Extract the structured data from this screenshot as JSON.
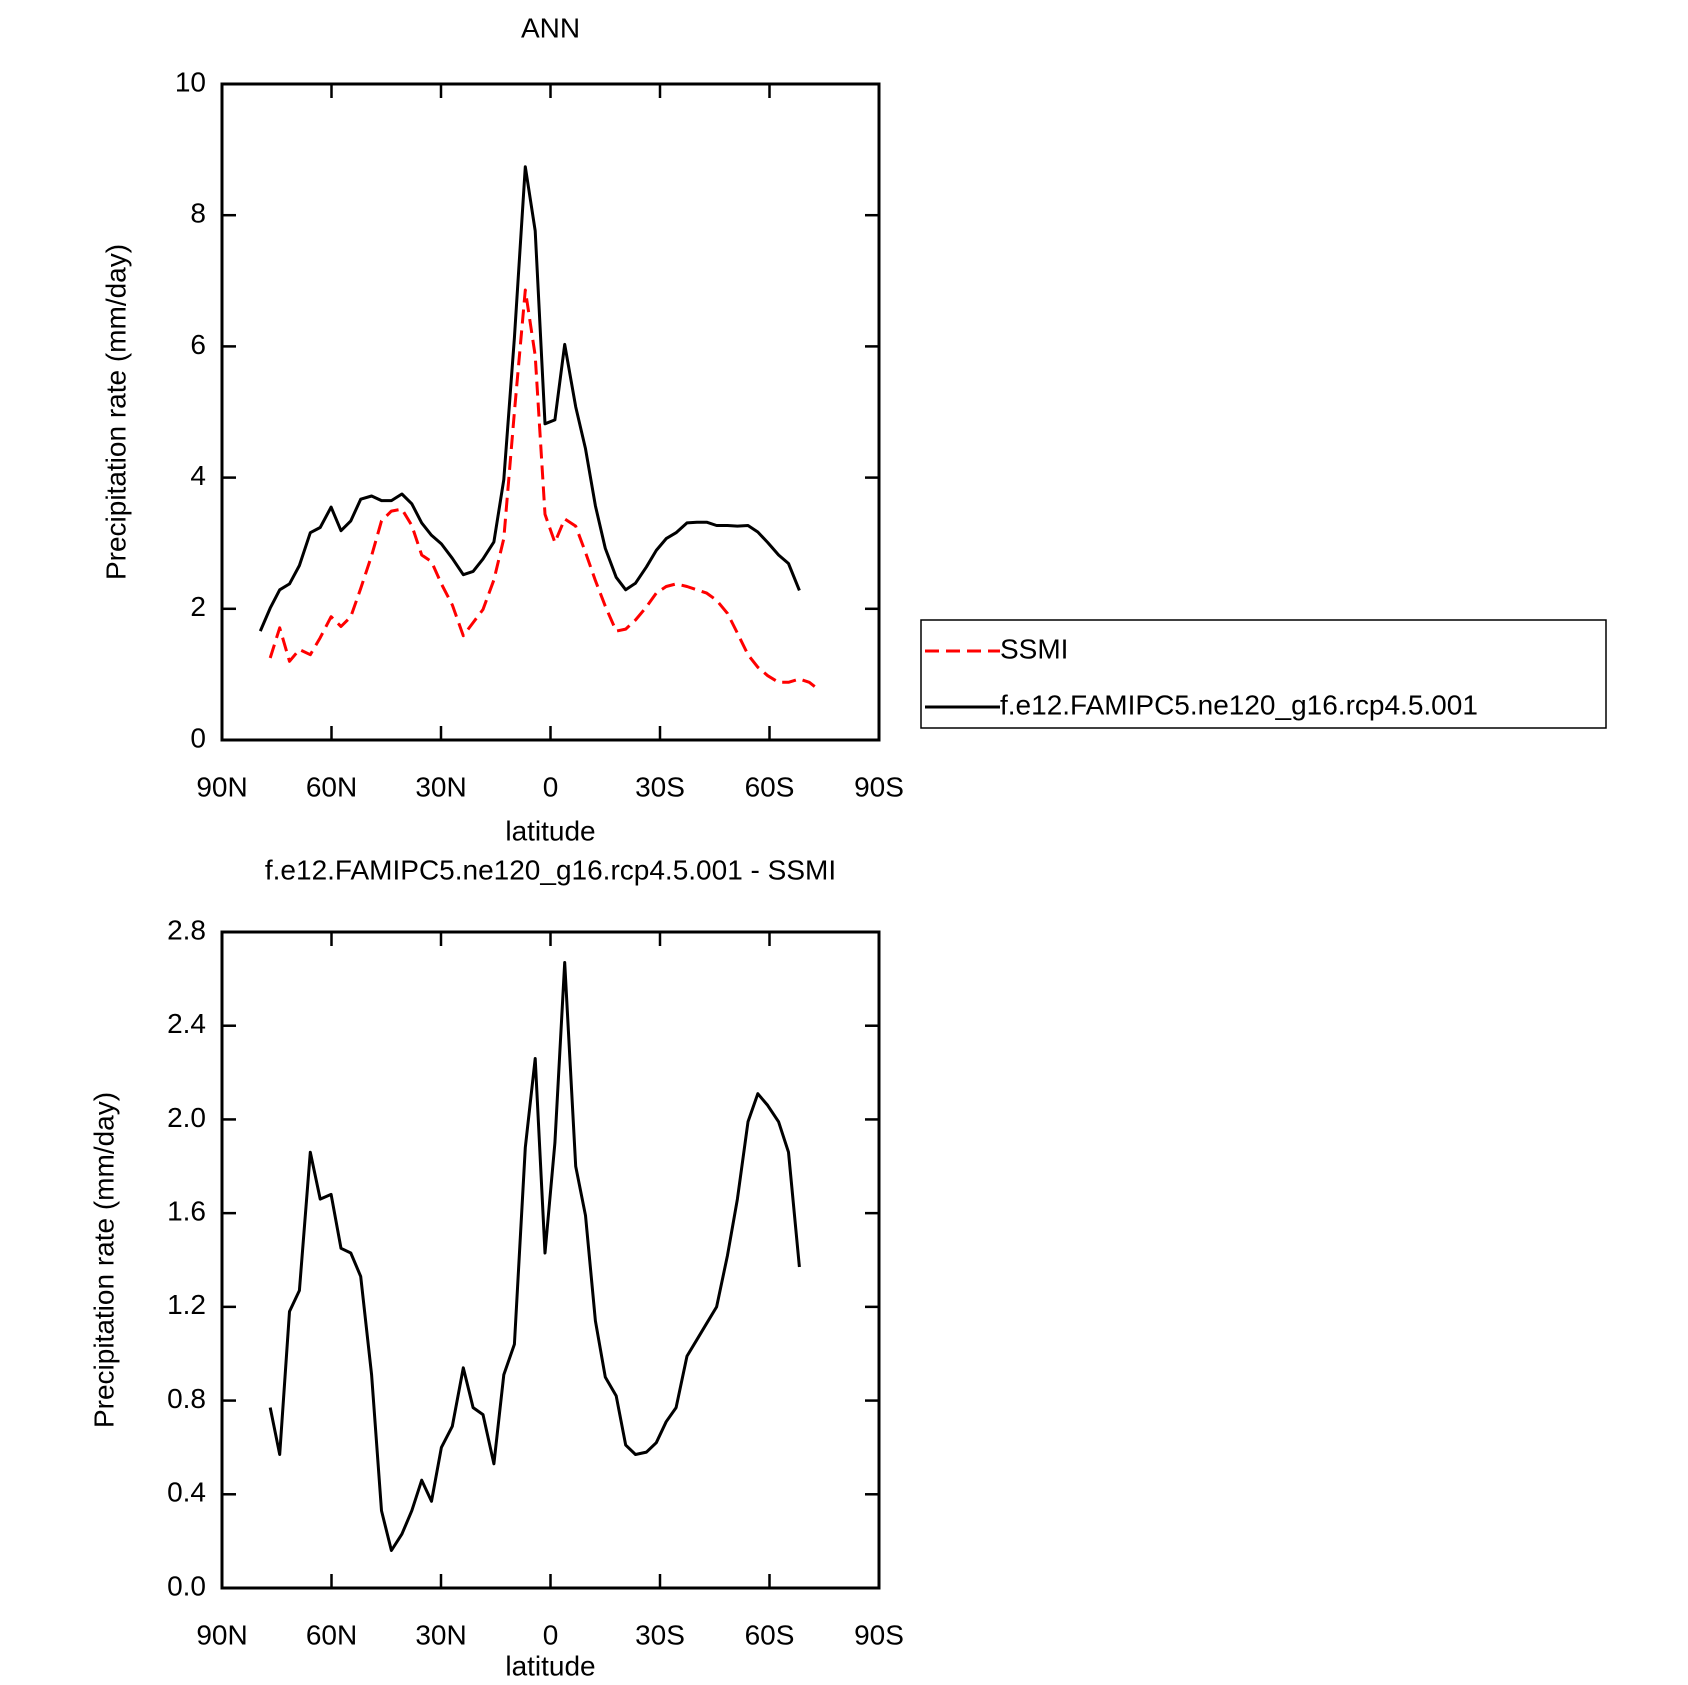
{
  "chart_data": [
    {
      "type": "line",
      "title": "ANN",
      "xlabel": "latitude",
      "ylabel": "Precipitation rate (mm/day)",
      "xlim": [
        90,
        -90
      ],
      "xticks": [
        {
          "value": 90,
          "label": "90N"
        },
        {
          "value": 60,
          "label": "60N"
        },
        {
          "value": 30,
          "label": "30N"
        },
        0,
        {
          "value": -30,
          "label": "30S"
        },
        {
          "value": -60,
          "label": "60S"
        },
        {
          "value": -90,
          "label": "90S"
        }
      ],
      "ylim": [
        0,
        10
      ],
      "yticks": [
        0,
        2,
        4,
        6,
        8,
        10
      ],
      "legend": "outside right",
      "series": [
        {
          "name": "SSMI",
          "color": "#ff0000",
          "line_style": "dashed",
          "x": [
            76.8,
            74.2,
            71.5,
            68.8,
            65.8,
            63.1,
            60.1,
            57.4,
            54.7,
            52.0,
            49.0,
            46.3,
            43.6,
            40.7,
            38.0,
            35.3,
            32.6,
            29.9,
            26.9,
            23.9,
            21.2,
            18.5,
            15.5,
            12.8,
            9.9,
            6.9,
            4.2,
            1.5,
            -1.2,
            -3.9,
            -6.9,
            -9.6,
            -12.3,
            -15.0,
            -18.0,
            -20.6,
            -23.3,
            -26.3,
            -29.0,
            -31.7,
            -34.4,
            -37.4,
            -40.1,
            -42.8,
            -45.5,
            -48.5,
            -51.2,
            -54.1,
            -56.8,
            -59.5,
            -62.5,
            -65.2,
            -68.2,
            -70.9,
            -73.9
          ],
          "values": [
            1.25,
            1.71,
            1.2,
            1.38,
            1.3,
            1.56,
            1.88,
            1.73,
            1.88,
            2.31,
            2.81,
            3.34,
            3.49,
            3.52,
            3.27,
            2.82,
            2.72,
            2.38,
            2.06,
            1.59,
            1.79,
            1.99,
            2.44,
            3.07,
            5.0,
            6.86,
            5.86,
            3.44,
            3.01,
            3.37,
            3.26,
            2.86,
            2.43,
            2.04,
            1.66,
            1.69,
            1.83,
            2.03,
            2.24,
            2.34,
            2.38,
            2.34,
            2.29,
            2.24,
            2.13,
            1.93,
            1.63,
            1.3,
            1.11,
            0.98,
            0.88,
            0.88,
            0.93,
            0.88,
            0.75
          ]
        },
        {
          "name": "f.e12.FAMIPC5.ne120_g16.rcp4.5.001",
          "color": "#000000",
          "line_style": "solid",
          "x": [
            79.5,
            76.8,
            74.2,
            71.5,
            68.8,
            65.8,
            63.1,
            60.1,
            57.4,
            54.7,
            52.0,
            49.0,
            46.3,
            43.6,
            40.7,
            38.0,
            35.3,
            32.6,
            29.9,
            26.9,
            23.9,
            21.2,
            18.5,
            15.5,
            12.8,
            9.9,
            6.9,
            4.2,
            1.5,
            -1.2,
            -3.9,
            -6.9,
            -9.6,
            -12.3,
            -15.0,
            -18.0,
            -20.6,
            -23.3,
            -26.3,
            -29.0,
            -31.7,
            -34.4,
            -37.4,
            -40.1,
            -42.8,
            -45.5,
            -48.5,
            -51.2,
            -54.1,
            -56.8,
            -59.5,
            -62.5,
            -65.2,
            -68.2
          ],
          "values": [
            1.66,
            2.01,
            2.29,
            2.38,
            2.66,
            3.16,
            3.24,
            3.55,
            3.19,
            3.34,
            3.67,
            3.72,
            3.65,
            3.65,
            3.75,
            3.6,
            3.31,
            3.12,
            2.99,
            2.77,
            2.52,
            2.57,
            2.76,
            3.02,
            3.97,
            6.13,
            8.74,
            7.76,
            4.82,
            4.88,
            6.03,
            5.08,
            4.44,
            3.57,
            2.92,
            2.48,
            2.29,
            2.39,
            2.64,
            2.89,
            3.07,
            3.16,
            3.31,
            3.32,
            3.32,
            3.27,
            3.27,
            3.26,
            3.27,
            3.17,
            3.01,
            2.82,
            2.69,
            2.28
          ]
        }
      ]
    },
    {
      "type": "line",
      "title": "f.e12.FAMIPC5.ne120_g16.rcp4.5.001 - SSMI",
      "xlabel": "latitude",
      "ylabel": "Precipitation rate (mm/day)",
      "xlim": [
        90,
        -90
      ],
      "xticks": [
        {
          "value": 90,
          "label": "90N"
        },
        {
          "value": 60,
          "label": "60N"
        },
        {
          "value": 30,
          "label": "30N"
        },
        0,
        {
          "value": -30,
          "label": "30S"
        },
        {
          "value": -60,
          "label": "60S"
        },
        {
          "value": -90,
          "label": "90S"
        }
      ],
      "ylim": [
        0,
        2.8
      ],
      "yticks": [
        {
          "value": 0,
          "label": "0.0"
        },
        0.4,
        0.8,
        1.2,
        1.6,
        {
          "value": 2,
          "label": "2.0"
        },
        2.4,
        2.8
      ],
      "series": [
        {
          "color": "#000000",
          "line_style": "solid",
          "x": [
            76.8,
            74.2,
            71.5,
            68.8,
            65.8,
            63.1,
            60.1,
            57.4,
            54.7,
            52.0,
            49.0,
            46.3,
            43.6,
            40.7,
            38.0,
            35.3,
            32.6,
            29.9,
            26.9,
            23.9,
            21.2,
            18.5,
            15.5,
            12.8,
            9.9,
            6.9,
            4.2,
            1.5,
            -1.2,
            -3.9,
            -6.9,
            -9.6,
            -12.3,
            -15.0,
            -18.0,
            -20.6,
            -23.3,
            -26.3,
            -29.0,
            -31.7,
            -34.4,
            -37.4,
            -40.1,
            -42.8,
            -45.5,
            -48.5,
            -51.2,
            -54.1,
            -56.8,
            -59.5,
            -62.5,
            -65.2,
            -68.2
          ],
          "values": [
            0.77,
            0.57,
            1.18,
            1.27,
            1.86,
            1.66,
            1.68,
            1.45,
            1.43,
            1.33,
            0.91,
            0.33,
            0.16,
            0.23,
            0.33,
            0.46,
            0.37,
            0.6,
            0.69,
            0.94,
            0.77,
            0.74,
            0.53,
            0.91,
            1.04,
            1.88,
            2.26,
            1.43,
            1.9,
            2.67,
            1.8,
            1.59,
            1.14,
            0.9,
            0.82,
            0.61,
            0.57,
            0.58,
            0.62,
            0.71,
            0.77,
            0.99,
            1.06,
            1.13,
            1.2,
            1.42,
            1.66,
            1.99,
            2.11,
            2.06,
            1.99,
            1.86,
            1.37
          ]
        }
      ]
    }
  ]
}
